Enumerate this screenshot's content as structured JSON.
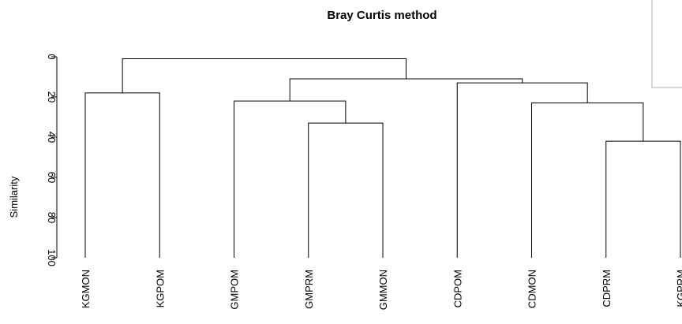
{
  "chart_data": {
    "type": "dendrogram",
    "title": "Bray Curtis method",
    "ylabel": "Similarity",
    "ylim": [
      0,
      100
    ],
    "y_reversed": true,
    "yticks": [
      0,
      20,
      40,
      60,
      80,
      100
    ],
    "tree": {
      "height": 1,
      "children": [
        {
          "height": 18,
          "children": [
            "KGMON",
            "KGPOM"
          ]
        },
        {
          "height": 11,
          "children": [
            {
              "height": 22,
              "children": [
                "GMPOM",
                {
                  "height": 33,
                  "children": [
                    "GMPRM",
                    "GMMON"
                  ]
                }
              ]
            },
            {
              "height": 13,
              "children": [
                "CDPOM",
                {
                  "height": 23,
                  "children": [
                    "CDMON",
                    {
                      "height": 42,
                      "children": [
                        "CDPRM",
                        "KGPRM"
                      ]
                    }
                  ]
                }
              ]
            }
          ]
        }
      ]
    }
  }
}
